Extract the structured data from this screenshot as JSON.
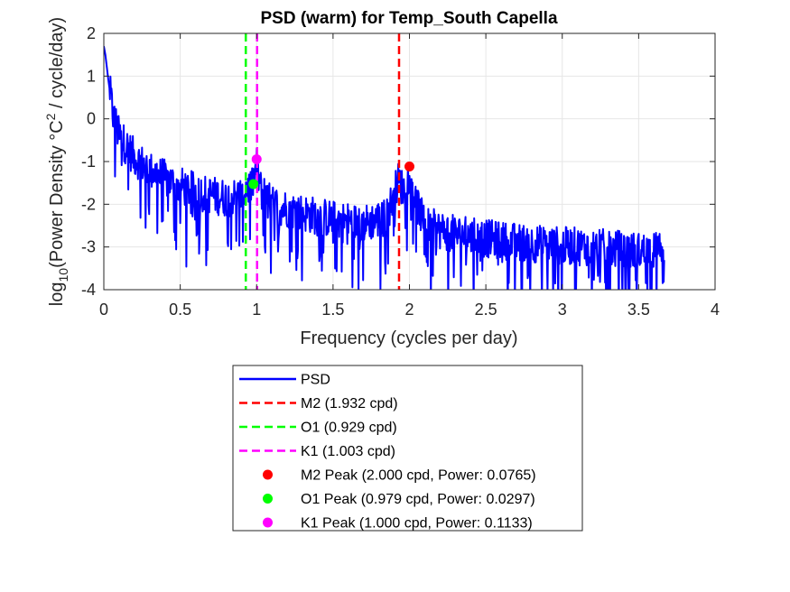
{
  "chart_data": {
    "type": "line",
    "title": "PSD (warm) for Temp_South Capella",
    "xlabel": "Frequency (cycles per day)",
    "ylabel": {
      "prefix": "log",
      "sub": "10",
      "mid": "(Power Density °C",
      "sup": "2",
      "suffix": " / cycle/day)"
    },
    "xlim": [
      0,
      4
    ],
    "ylim": [
      -4,
      2
    ],
    "xticks": [
      0,
      0.5,
      1,
      1.5,
      2,
      2.5,
      3,
      3.5,
      4
    ],
    "xtick_labels": [
      "0",
      "0.5",
      "1",
      "1.5",
      "2",
      "2.5",
      "3",
      "3.5",
      "4"
    ],
    "yticks": [
      -4,
      -3,
      -2,
      -1,
      0,
      1,
      2
    ],
    "ytick_labels": [
      "-4",
      "-3",
      "-2",
      "-1",
      "0",
      "1",
      "2"
    ],
    "grid": true,
    "psd_series": {
      "name": "PSD",
      "color": "#0000ff",
      "x_range": [
        0,
        3.667
      ],
      "envelope": [
        [
          0.0,
          1.7
        ],
        [
          0.01,
          1.5
        ],
        [
          0.03,
          0.9
        ],
        [
          0.06,
          0.1
        ],
        [
          0.1,
          -0.4
        ],
        [
          0.2,
          -0.9
        ],
        [
          0.3,
          -1.2
        ],
        [
          0.45,
          -1.5
        ],
        [
          0.6,
          -1.7
        ],
        [
          0.8,
          -1.85
        ],
        [
          0.9,
          -1.8
        ],
        [
          0.93,
          -1.6
        ],
        [
          0.97,
          -1.6
        ],
        [
          1.0,
          -1.1
        ],
        [
          1.03,
          -1.7
        ],
        [
          1.1,
          -2.0
        ],
        [
          1.3,
          -2.2
        ],
        [
          1.5,
          -2.35
        ],
        [
          1.7,
          -2.45
        ],
        [
          1.85,
          -2.3
        ],
        [
          1.932,
          -1.4
        ],
        [
          1.96,
          -1.7
        ],
        [
          2.0,
          -1.2
        ],
        [
          2.04,
          -1.9
        ],
        [
          2.1,
          -2.5
        ],
        [
          2.3,
          -2.7
        ],
        [
          2.6,
          -2.85
        ],
        [
          2.9,
          -2.95
        ],
        [
          3.2,
          -3.0
        ],
        [
          3.5,
          -3.1
        ],
        [
          3.667,
          -3.1
        ]
      ]
    },
    "vlines": [
      {
        "name": "M2 (1.932 cpd)",
        "x": 1.932,
        "color": "#ff0000"
      },
      {
        "name": "O1 (0.929 cpd)",
        "x": 0.929,
        "color": "#00ff00"
      },
      {
        "name": "K1 (1.003 cpd)",
        "x": 1.003,
        "color": "#ff00ff"
      }
    ],
    "peaks": [
      {
        "name": "M2 Peak (2.000 cpd, Power: 0.0765)",
        "x": 2.0,
        "y": -1.116,
        "color": "#ff0000"
      },
      {
        "name": "O1 Peak (0.979 cpd, Power: 0.0297)",
        "x": 0.979,
        "y": -1.527,
        "color": "#00ff00"
      },
      {
        "name": "K1 Peak (1.000 cpd, Power: 0.1133)",
        "x": 1.0,
        "y": -0.946,
        "color": "#ff00ff"
      }
    ],
    "legend": {
      "placement": "bottom-center-outside",
      "entries": [
        {
          "label": "PSD",
          "style": "solid-line",
          "color": "#0000ff"
        },
        {
          "label": "M2 (1.932 cpd)",
          "style": "dashed-line",
          "color": "#ff0000"
        },
        {
          "label": "O1 (0.929 cpd)",
          "style": "dashed-line",
          "color": "#00ff00"
        },
        {
          "label": "K1 (1.003 cpd)",
          "style": "dashed-line",
          "color": "#ff00ff"
        },
        {
          "label": "M2 Peak (2.000 cpd, Power: 0.0765)",
          "style": "marker",
          "color": "#ff0000"
        },
        {
          "label": "O1 Peak (0.979 cpd, Power: 0.0297)",
          "style": "marker",
          "color": "#00ff00"
        },
        {
          "label": "K1 Peak (1.000 cpd, Power: 0.1133)",
          "style": "marker",
          "color": "#ff00ff"
        }
      ]
    }
  }
}
